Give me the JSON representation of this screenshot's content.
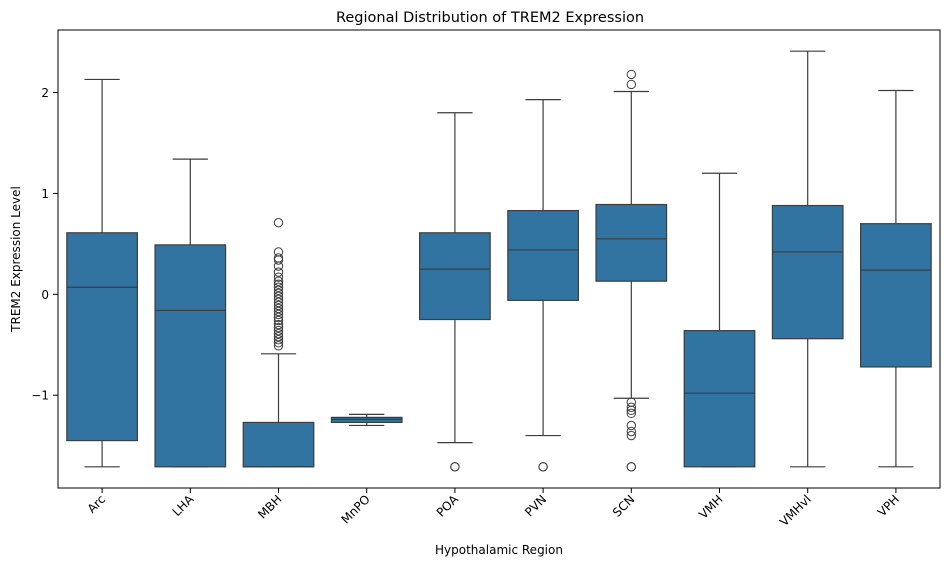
{
  "chart_data": {
    "type": "box",
    "title": "Regional Distribution of TREM2 Expression",
    "xlabel": "Hypothalamic Region",
    "ylabel": "TREM2 Expression Level",
    "ylim": [
      -1.92,
      2.62
    ],
    "yticks": [
      -1,
      0,
      1,
      2
    ],
    "ytick_labels": [
      "−1",
      "0",
      "1",
      "2"
    ],
    "grid": false,
    "box_color": "#3274a1",
    "line_color": "#3d3d3d",
    "categories": [
      "Arc",
      "LHA",
      "MBH",
      "MnPO",
      "POA",
      "PVN",
      "SCN",
      "VMH",
      "VMHvl",
      "VPH"
    ],
    "boxes": [
      {
        "label": "Arc",
        "whislo": -1.71,
        "q1": -1.45,
        "med": 0.07,
        "q3": 0.61,
        "whishi": 2.13,
        "fliers": []
      },
      {
        "label": "LHA",
        "whislo": -1.71,
        "q1": -1.71,
        "med": -0.16,
        "q3": 0.49,
        "whishi": 1.34,
        "fliers": []
      },
      {
        "label": "MBH",
        "whislo": -1.71,
        "q1": -1.71,
        "med": -1.71,
        "q3": -1.27,
        "whishi": -0.59,
        "fliers": [
          0.71,
          0.42,
          0.36,
          0.34,
          0.28,
          0.22,
          0.17,
          0.13,
          0.1,
          0.07,
          0.04,
          0.01,
          -0.02,
          -0.05,
          -0.08,
          -0.11,
          -0.14,
          -0.17,
          -0.2,
          -0.23,
          -0.26,
          -0.3,
          -0.33,
          -0.36,
          -0.39,
          -0.42,
          -0.45,
          -0.48,
          -0.51
        ]
      },
      {
        "label": "MnPO",
        "whislo": -1.3,
        "q1": -1.27,
        "med": -1.24,
        "q3": -1.22,
        "whishi": -1.19,
        "fliers": []
      },
      {
        "label": "POA",
        "whislo": -1.47,
        "q1": -0.25,
        "med": 0.25,
        "q3": 0.61,
        "whishi": 1.8,
        "fliers": [
          -1.71,
          -1.71
        ]
      },
      {
        "label": "PVN",
        "whislo": -1.4,
        "q1": -0.06,
        "med": 0.44,
        "q3": 0.83,
        "whishi": 1.93,
        "fliers": [
          -1.71,
          -1.71
        ]
      },
      {
        "label": "SCN",
        "whislo": -1.03,
        "q1": 0.13,
        "med": 0.55,
        "q3": 0.89,
        "whishi": 2.01,
        "fliers": [
          2.18,
          2.08,
          -1.07,
          -1.12,
          -1.15,
          -1.18,
          -1.3,
          -1.36,
          -1.4,
          -1.71,
          -1.71
        ]
      },
      {
        "label": "VMH",
        "whislo": -1.71,
        "q1": -1.71,
        "med": -0.98,
        "q3": -0.36,
        "whishi": 1.2,
        "fliers": []
      },
      {
        "label": "VMHvl",
        "whislo": -1.71,
        "q1": -0.44,
        "med": 0.42,
        "q3": 0.88,
        "whishi": 2.41,
        "fliers": []
      },
      {
        "label": "VPH",
        "whislo": -1.71,
        "q1": -0.72,
        "med": 0.24,
        "q3": 0.7,
        "whishi": 2.02,
        "fliers": []
      }
    ]
  }
}
